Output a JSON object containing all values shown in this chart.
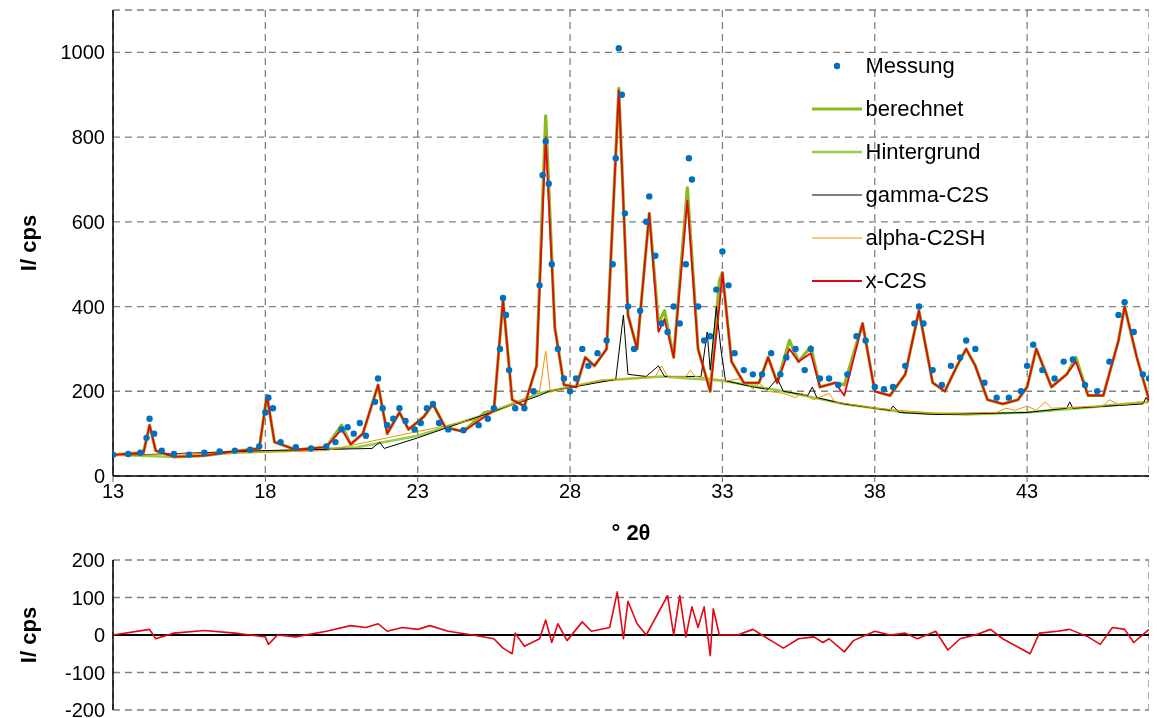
{
  "chart_data": [
    {
      "type": "line",
      "ylabel": "I/ cps",
      "xlabel": "° 2θ",
      "xlim": [
        13,
        47
      ],
      "ylim": [
        0,
        1100
      ],
      "xticks": [
        13,
        18,
        23,
        28,
        33,
        38,
        43
      ],
      "yticks": [
        0,
        200,
        400,
        600,
        800,
        1000
      ],
      "grid": true,
      "legend": "top right",
      "series": [
        {
          "name": "Messung",
          "type": "scatter",
          "marker": "circle",
          "color": "#0070c0",
          "x": [
            13.0,
            13.5,
            13.9,
            14.1,
            14.2,
            14.35,
            14.6,
            15.0,
            15.5,
            16.0,
            16.5,
            17.0,
            17.5,
            17.8,
            18.0,
            18.1,
            18.25,
            18.5,
            19.0,
            19.5,
            20.0,
            20.3,
            20.5,
            20.7,
            20.9,
            21.1,
            21.3,
            21.6,
            21.7,
            21.85,
            22.0,
            22.2,
            22.4,
            22.6,
            22.9,
            23.1,
            23.3,
            23.5,
            23.7,
            24.0,
            24.5,
            25.0,
            25.3,
            25.5,
            25.7,
            25.8,
            25.9,
            26.0,
            26.2,
            26.5,
            26.8,
            27.0,
            27.1,
            27.2,
            27.3,
            27.4,
            27.6,
            27.8,
            28.0,
            28.2,
            28.4,
            28.6,
            28.9,
            29.2,
            29.4,
            29.5,
            29.6,
            29.7,
            29.8,
            29.9,
            30.1,
            30.3,
            30.5,
            30.6,
            30.8,
            31.0,
            31.2,
            31.4,
            31.6,
            31.8,
            31.9,
            32.0,
            32.2,
            32.4,
            32.6,
            32.8,
            33.0,
            33.2,
            33.4,
            33.7,
            34.0,
            34.3,
            34.6,
            34.9,
            35.1,
            35.4,
            35.7,
            35.9,
            36.2,
            36.5,
            36.8,
            37.1,
            37.4,
            37.7,
            38.0,
            38.3,
            38.6,
            39.0,
            39.3,
            39.45,
            39.6,
            39.9,
            40.2,
            40.5,
            40.8,
            41.0,
            41.3,
            41.6,
            42.0,
            42.4,
            42.8,
            43.0,
            43.2,
            43.5,
            43.9,
            44.2,
            44.5,
            44.9,
            45.3,
            45.7,
            46.0,
            46.2,
            46.5,
            46.8,
            47.0
          ],
          "values": [
            50,
            52,
            55,
            90,
            135,
            100,
            60,
            52,
            50,
            55,
            58,
            60,
            62,
            70,
            150,
            185,
            160,
            80,
            68,
            65,
            70,
            80,
            110,
            115,
            100,
            125,
            95,
            175,
            230,
            160,
            120,
            135,
            160,
            130,
            110,
            125,
            160,
            170,
            125,
            110,
            108,
            120,
            135,
            160,
            300,
            420,
            380,
            250,
            160,
            160,
            200,
            450,
            710,
            790,
            690,
            500,
            300,
            230,
            200,
            230,
            300,
            260,
            290,
            320,
            500,
            750,
            1010,
            900,
            620,
            400,
            300,
            390,
            600,
            660,
            520,
            360,
            340,
            400,
            360,
            500,
            750,
            700,
            400,
            320,
            330,
            440,
            530,
            450,
            290,
            250,
            240,
            240,
            290,
            240,
            280,
            300,
            250,
            300,
            230,
            230,
            215,
            240,
            330,
            320,
            210,
            205,
            210,
            260,
            360,
            400,
            360,
            250,
            215,
            260,
            280,
            320,
            300,
            220,
            185,
            185,
            200,
            260,
            310,
            250,
            230,
            270,
            275,
            215,
            200,
            270,
            380,
            410,
            340,
            240,
            230
          ]
        },
        {
          "name": "berechnet",
          "color": "#8cba1e",
          "x": [
            13,
            14,
            14.2,
            14.4,
            15,
            16,
            17,
            17.8,
            18.05,
            18.3,
            19,
            20,
            20.5,
            20.8,
            21.2,
            21.7,
            22,
            22.4,
            22.7,
            23.2,
            23.5,
            23.9,
            24.5,
            25.2,
            25.5,
            25.8,
            26.1,
            26.5,
            26.9,
            27.2,
            27.5,
            27.8,
            28.2,
            28.5,
            28.8,
            29.2,
            29.6,
            29.9,
            30.2,
            30.6,
            30.9,
            31.1,
            31.4,
            31.85,
            32.2,
            32.6,
            32.9,
            33.0,
            33.3,
            33.7,
            34.2,
            34.5,
            34.8,
            35.2,
            35.5,
            35.9,
            36.2,
            36.7,
            37.0,
            37.6,
            38.0,
            38.5,
            39.0,
            39.45,
            39.9,
            40.3,
            40.7,
            41.0,
            41.3,
            41.7,
            42.2,
            42.7,
            43.0,
            43.3,
            43.8,
            44.3,
            44.6,
            45.0,
            45.5,
            46.0,
            46.2,
            46.6,
            47
          ],
          "values": [
            50,
            55,
            120,
            60,
            45,
            48,
            58,
            65,
            190,
            80,
            62,
            68,
            120,
            75,
            100,
            215,
            100,
            150,
            110,
            140,
            170,
            115,
            105,
            150,
            155,
            415,
            180,
            165,
            260,
            850,
            350,
            215,
            210,
            280,
            260,
            300,
            915,
            380,
            300,
            620,
            360,
            390,
            280,
            680,
            300,
            200,
            460,
            480,
            270,
            220,
            220,
            280,
            220,
            320,
            270,
            305,
            210,
            220,
            215,
            360,
            200,
            190,
            240,
            390,
            220,
            200,
            260,
            300,
            260,
            180,
            170,
            180,
            210,
            300,
            210,
            240,
            280,
            190,
            190,
            320,
            400,
            280,
            180
          ]
        },
        {
          "name": "Hintergrund",
          "color": "#8fd14f",
          "x": [
            13,
            15,
            17,
            19,
            21,
            23,
            25,
            27,
            29,
            31,
            33,
            35,
            37,
            39,
            41,
            43,
            45,
            47
          ],
          "values": [
            50,
            45,
            55,
            60,
            68,
            95,
            140,
            195,
            225,
            235,
            225,
            200,
            170,
            150,
            145,
            150,
            162,
            175
          ]
        },
        {
          "name": "gamma-C2S",
          "color": "#000000",
          "x": [
            13,
            18,
            21.5,
            21.75,
            21.9,
            23,
            27,
            27.3,
            29.5,
            29.75,
            29.9,
            30.5,
            30.9,
            31.1,
            32.3,
            32.5,
            32.6,
            32.8,
            32.95,
            33.1,
            34,
            34.5,
            34.8,
            35,
            35.8,
            35.95,
            36.1,
            37,
            38.5,
            38.6,
            38.8,
            40,
            43,
            44.3,
            44.4,
            44.5,
            46.8,
            46.9,
            47
          ],
          "values": [
            48,
            60,
            65,
            80,
            65,
            90,
            190,
            200,
            228,
            380,
            240,
            235,
            260,
            235,
            235,
            340,
            250,
            400,
            300,
            225,
            210,
            205,
            230,
            200,
            190,
            210,
            185,
            170,
            155,
            165,
            150,
            145,
            150,
            160,
            175,
            160,
            170,
            185,
            175
          ]
        },
        {
          "name": "alpha-C2SH",
          "color": "#f39200",
          "x": [
            13,
            20,
            25,
            26.5,
            27,
            27.2,
            27.35,
            29,
            30.8,
            31.0,
            31.2,
            31.8,
            31.95,
            32.1,
            33.2,
            33.6,
            34.0,
            34.2,
            34.5,
            35,
            35.4,
            35.6,
            36,
            36.5,
            36.7,
            38,
            40,
            42,
            42.3,
            42.6,
            43.0,
            43.3,
            43.6,
            43.8,
            45.5,
            45.7,
            46,
            47
          ],
          "values": [
            48,
            60,
            135,
            180,
            200,
            295,
            200,
            225,
            235,
            260,
            235,
            235,
            250,
            235,
            225,
            230,
            205,
            220,
            200,
            195,
            185,
            195,
            180,
            195,
            175,
            160,
            148,
            150,
            160,
            155,
            165,
            155,
            175,
            160,
            165,
            180,
            168,
            175
          ]
        },
        {
          "name": "x-C2S",
          "color": "#e30613",
          "x": [
            13,
            14,
            14.2,
            14.4,
            15,
            16,
            17,
            17.8,
            18.05,
            18.3,
            19,
            20,
            20.5,
            20.8,
            21.2,
            21.7,
            22,
            22.4,
            22.7,
            23.2,
            23.5,
            23.9,
            24.5,
            25.2,
            25.5,
            25.8,
            26.1,
            26.5,
            26.9,
            27.2,
            27.5,
            27.8,
            28.2,
            28.5,
            28.8,
            29.2,
            29.6,
            29.9,
            30.2,
            30.6,
            30.9,
            31.1,
            31.4,
            31.85,
            32.2,
            32.6,
            32.9,
            33.0,
            33.3,
            33.7,
            34.2,
            34.5,
            34.8,
            35.2,
            35.5,
            35.9,
            36.2,
            36.7,
            37.0,
            37.6,
            38.0,
            38.5,
            39.0,
            39.45,
            39.9,
            40.3,
            40.7,
            41.0,
            41.3,
            41.7,
            42.2,
            42.7,
            43.0,
            43.3,
            43.8,
            44.3,
            44.6,
            45.0,
            45.5,
            46.0,
            46.2,
            46.6,
            47
          ],
          "values": [
            50,
            55,
            120,
            60,
            45,
            48,
            58,
            65,
            190,
            80,
            62,
            68,
            110,
            75,
            100,
            215,
            100,
            150,
            110,
            140,
            170,
            115,
            105,
            140,
            155,
            415,
            180,
            165,
            260,
            800,
            350,
            215,
            210,
            280,
            260,
            300,
            910,
            380,
            300,
            620,
            340,
            370,
            280,
            650,
            300,
            200,
            400,
            480,
            270,
            220,
            220,
            280,
            220,
            300,
            270,
            290,
            210,
            220,
            190,
            360,
            200,
            190,
            240,
            390,
            220,
            200,
            260,
            300,
            260,
            180,
            170,
            180,
            210,
            300,
            210,
            240,
            270,
            190,
            190,
            320,
            400,
            280,
            180
          ]
        }
      ]
    },
    {
      "type": "line",
      "ylabel": "I/ cps",
      "xlim": [
        13,
        47
      ],
      "ylim": [
        -200,
        200
      ],
      "xticks": [
        13,
        18,
        23,
        28,
        33,
        38,
        43
      ],
      "yticks": [
        -200,
        -100,
        0,
        100,
        200
      ],
      "grid": true,
      "tick_labels": "y",
      "ref_lines": [
        {
          "axis": "y",
          "value": 0,
          "color": "#000000"
        }
      ],
      "series": [
        {
          "color": "#e30613",
          "x": [
            13,
            14.2,
            14.4,
            15,
            16,
            17,
            18,
            18.1,
            18.4,
            19,
            20,
            20.8,
            21.3,
            21.7,
            22,
            22.5,
            23,
            23.4,
            24,
            24.8,
            25.5,
            25.8,
            26.1,
            26.2,
            26.5,
            27.0,
            27.2,
            27.4,
            27.6,
            27.9,
            28.4,
            28.7,
            29.3,
            29.55,
            29.75,
            29.9,
            30.2,
            30.5,
            30.9,
            31.2,
            31.4,
            31.6,
            31.8,
            32.0,
            32.2,
            32.4,
            32.6,
            32.7,
            32.9,
            33.5,
            34,
            34.6,
            35.0,
            35.5,
            36.0,
            36.3,
            36.5,
            37.0,
            37.3,
            38,
            38.5,
            39,
            39.4,
            40,
            40.4,
            40.8,
            41.3,
            41.8,
            42.2,
            43.1,
            43.4,
            44,
            44.4,
            45,
            45.4,
            45.8,
            46.2,
            46.5,
            47
          ],
          "values": [
            0,
            15,
            -10,
            5,
            12,
            5,
            -5,
            -25,
            0,
            -5,
            10,
            25,
            20,
            30,
            10,
            20,
            15,
            25,
            10,
            0,
            -10,
            -35,
            -50,
            5,
            -30,
            -10,
            40,
            -20,
            30,
            -15,
            35,
            10,
            20,
            115,
            -10,
            90,
            30,
            0,
            60,
            105,
            0,
            105,
            -5,
            75,
            20,
            75,
            -55,
            70,
            0,
            0,
            15,
            -15,
            -35,
            -10,
            -5,
            -20,
            -10,
            -45,
            -15,
            10,
            0,
            5,
            -10,
            10,
            -40,
            -10,
            0,
            15,
            -10,
            -50,
            5,
            10,
            15,
            -5,
            -25,
            20,
            15,
            -20,
            15
          ]
        }
      ]
    }
  ]
}
